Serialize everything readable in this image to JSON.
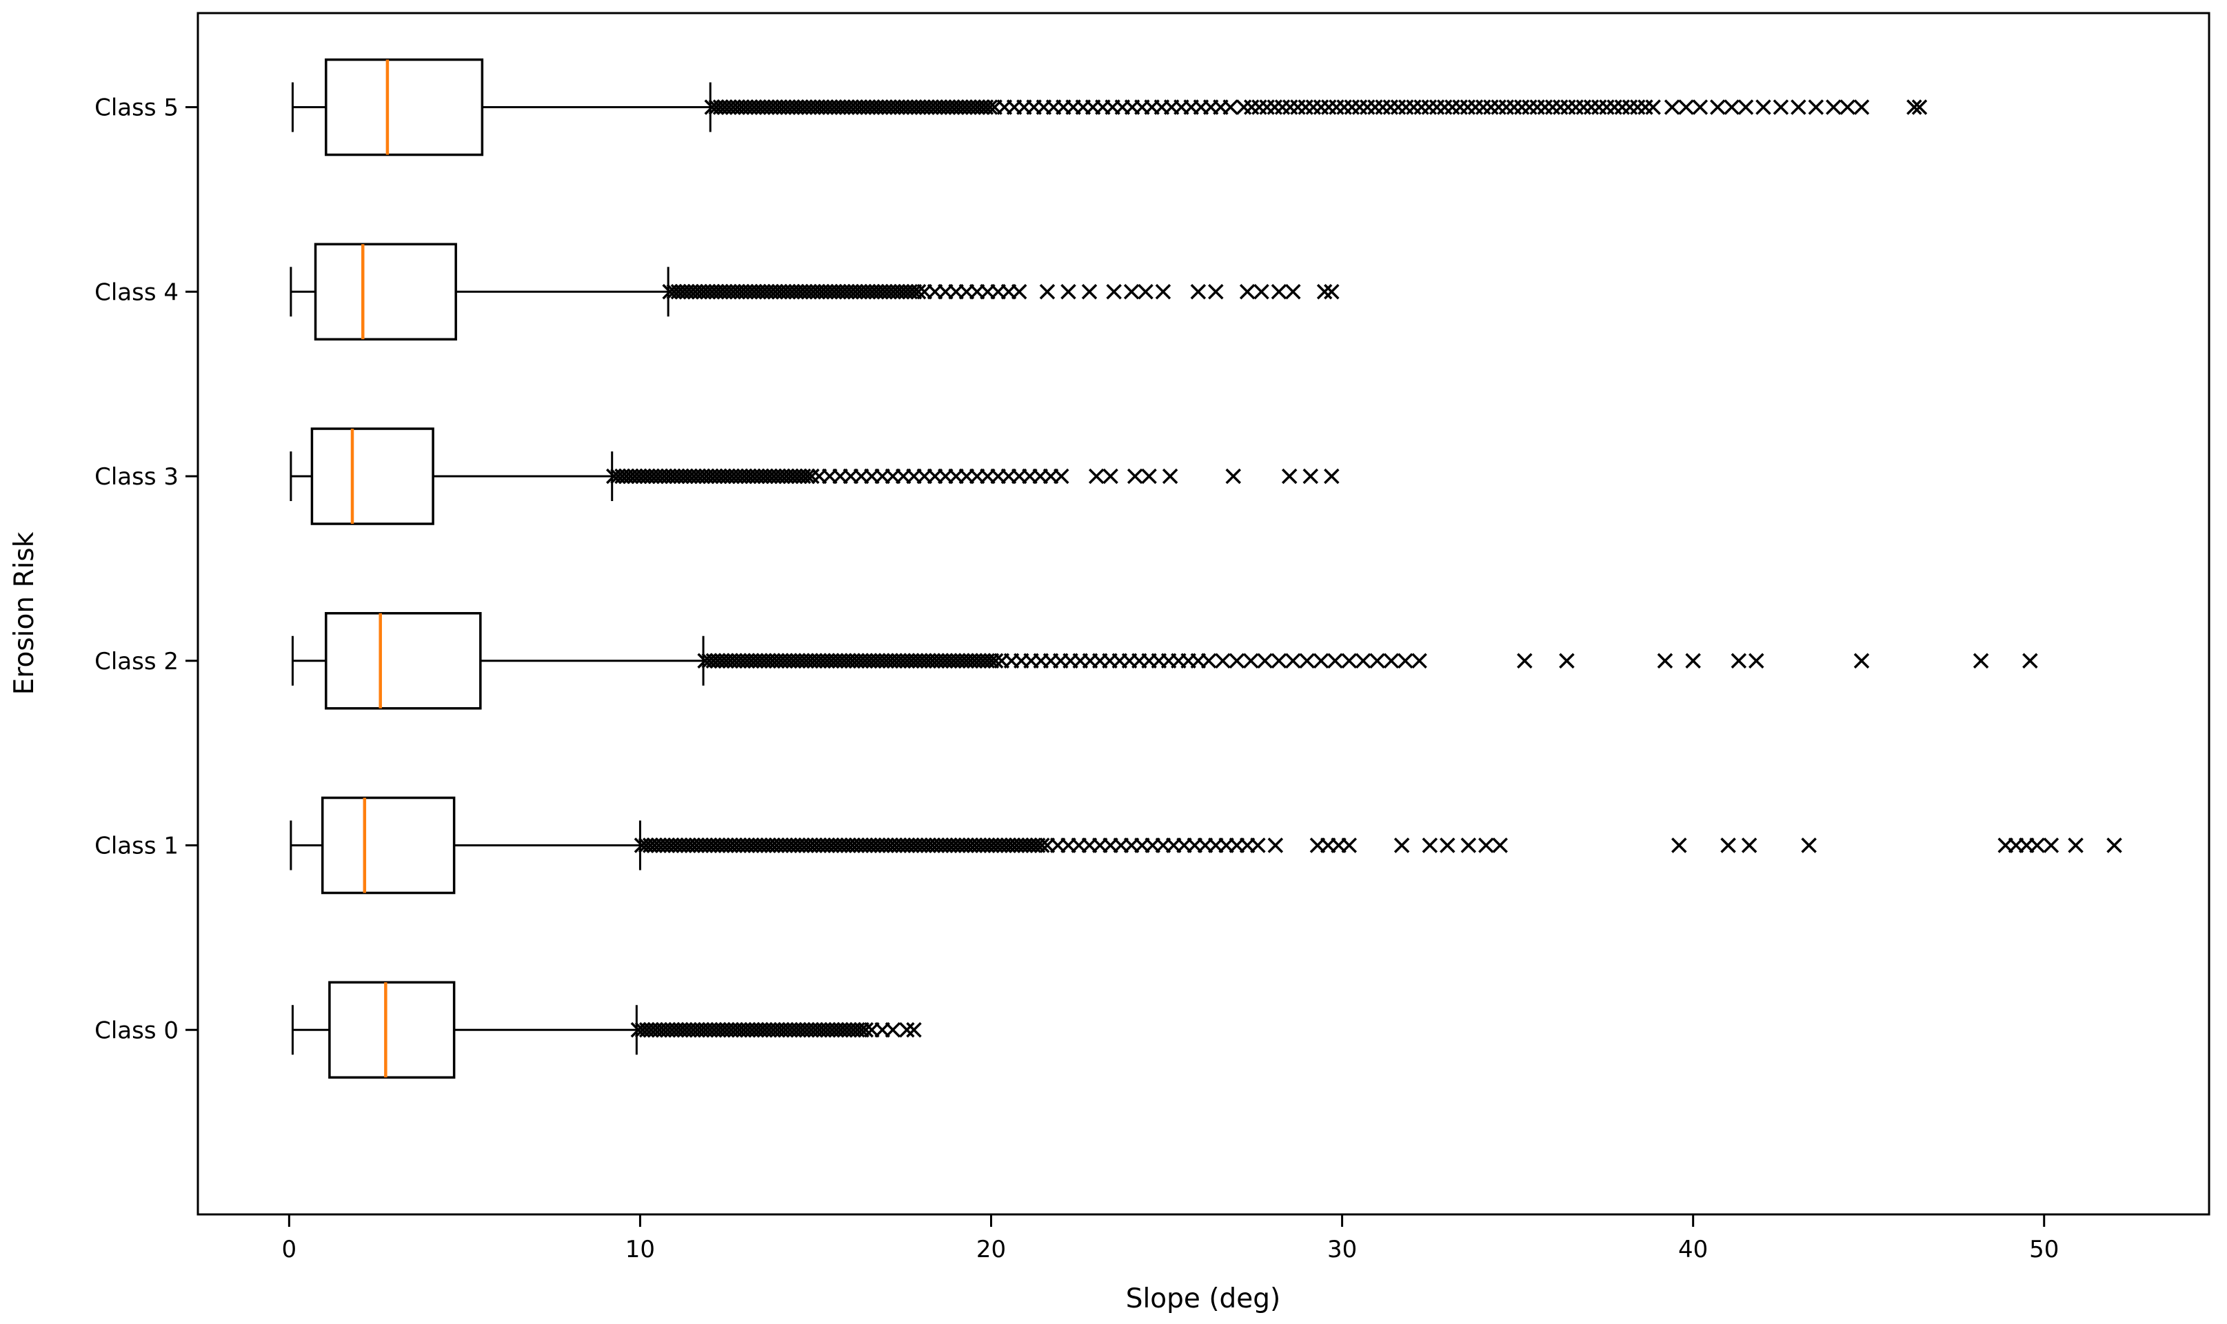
{
  "figure": {
    "background": "#ffffff"
  },
  "chart_data": {
    "type": "boxplot",
    "orientation": "horizontal",
    "title": "",
    "xlabel": "Slope (deg)",
    "ylabel": "Erosion Risk",
    "xlim": [
      -2.6,
      54.7
    ],
    "ylim": [
      0,
      6.51
    ],
    "x_ticks": [
      0,
      10,
      20,
      30,
      40,
      50
    ],
    "categories": [
      "Class 0",
      "Class 1",
      "Class 2",
      "Class 3",
      "Class 4",
      "Class 5"
    ],
    "grid": false,
    "legend": false,
    "colors": {
      "box": "#000000",
      "median": "#ff7f0e",
      "whisker": "#000000",
      "flier": "#000000",
      "spine": "#000000"
    },
    "flier_marker": "x",
    "series": [
      {
        "label": "Class 0",
        "position": 1,
        "whisker_low": 0.1,
        "q1": 1.15,
        "median": 2.75,
        "q3": 4.7,
        "whisker_high": 9.9,
        "outlier_bands": [
          [
            9.95,
            16.5,
            0.12
          ],
          [
            16.6,
            17.2,
            0.3
          ]
        ],
        "outlier_points": [
          17.6,
          17.8
        ]
      },
      {
        "label": "Class 1",
        "position": 2,
        "whisker_low": 0.05,
        "q1": 0.95,
        "median": 2.15,
        "q3": 4.7,
        "whisker_high": 10.0,
        "outlier_bands": [
          [
            10.05,
            21.5,
            0.12
          ],
          [
            21.6,
            27.6,
            0.3
          ]
        ],
        "outlier_points": [
          28.1,
          29.3,
          29.6,
          29.9,
          30.2,
          31.7,
          32.5,
          33.0,
          33.6,
          34.1,
          34.5,
          39.6,
          41.0,
          41.6,
          43.3,
          48.9,
          49.2,
          49.5,
          49.8,
          50.2,
          50.9,
          52.0
        ]
      },
      {
        "label": "Class 2",
        "position": 3,
        "whisker_low": 0.1,
        "q1": 1.05,
        "median": 2.6,
        "q3": 5.45,
        "whisker_high": 11.8,
        "outlier_bands": [
          [
            11.85,
            20.2,
            0.12
          ],
          [
            20.3,
            26.0,
            0.28
          ],
          [
            26.2,
            32.2,
            0.4
          ]
        ],
        "outlier_points": [
          35.2,
          36.4,
          39.2,
          40.0,
          41.3,
          41.8,
          44.8,
          48.2,
          49.6
        ]
      },
      {
        "label": "Class 3",
        "position": 4,
        "whisker_low": 0.05,
        "q1": 0.65,
        "median": 1.8,
        "q3": 4.1,
        "whisker_high": 9.2,
        "outlier_bands": [
          [
            9.25,
            15.0,
            0.12
          ],
          [
            15.1,
            22.2,
            0.3
          ]
        ],
        "outlier_points": [
          23.0,
          23.4,
          24.1,
          24.5,
          25.1,
          26.9,
          28.5,
          29.1,
          29.7
        ]
      },
      {
        "label": "Class 4",
        "position": 5,
        "whisker_low": 0.05,
        "q1": 0.75,
        "median": 2.1,
        "q3": 4.75,
        "whisker_high": 10.8,
        "outlier_bands": [
          [
            10.85,
            18.0,
            0.12
          ],
          [
            18.1,
            21.0,
            0.3
          ]
        ],
        "outlier_points": [
          21.6,
          22.2,
          22.8,
          23.5,
          24.0,
          24.4,
          24.9,
          25.9,
          26.4,
          27.3,
          27.7,
          28.2,
          28.6,
          29.5,
          29.7
        ]
      },
      {
        "label": "Class 5",
        "position": 6,
        "whisker_low": 0.1,
        "q1": 1.05,
        "median": 2.8,
        "q3": 5.5,
        "whisker_high": 12.0,
        "outlier_bands": [
          [
            12.05,
            20.0,
            0.12
          ],
          [
            20.1,
            27.0,
            0.28
          ],
          [
            27.2,
            39.0,
            0.22
          ]
        ],
        "outlier_points": [
          39.4,
          39.8,
          40.2,
          40.7,
          41.1,
          41.5,
          42.0,
          42.5,
          43.0,
          43.5,
          44.0,
          44.4,
          44.8,
          46.3,
          46.45
        ]
      }
    ]
  }
}
